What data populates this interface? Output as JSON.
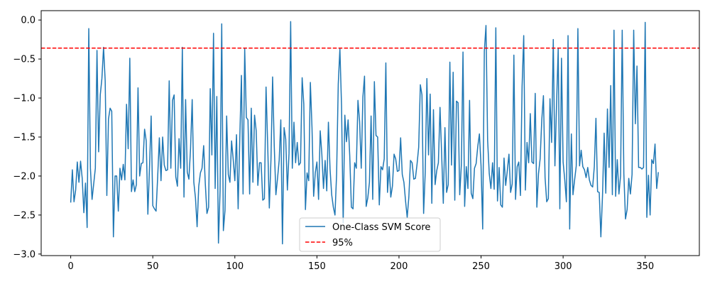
{
  "chart_data": {
    "type": "line",
    "title": "",
    "xlabel": "",
    "ylabel": "",
    "xlim": [
      -18,
      383
    ],
    "ylim": [
      -3.02,
      0.12
    ],
    "xticks": [
      0,
      50,
      100,
      150,
      200,
      250,
      300,
      350
    ],
    "yticks": [
      0.0,
      -0.5,
      -1.0,
      -1.5,
      -2.0,
      -2.5,
      -3.0
    ],
    "xtick_labels": [
      "0",
      "50",
      "100",
      "150",
      "200",
      "250",
      "300",
      "350"
    ],
    "ytick_labels": [
      "0.0",
      "−0.5",
      "−1.0",
      "−1.5",
      "−2.0",
      "−2.5",
      "−3.0"
    ],
    "grid": false,
    "legend_position": "bottom-center",
    "series": [
      {
        "name": "One-Class SVM Score",
        "color": "#1f77b4",
        "style": "solid",
        "x_start": 0,
        "values": [
          -2.34,
          -1.92,
          -2.33,
          -2.18,
          -1.82,
          -2.08,
          -1.81,
          -2.03,
          -2.47,
          -2.09,
          -2.66,
          -0.11,
          -1.9,
          -2.3,
          -2.1,
          -1.9,
          -0.39,
          -1.69,
          -0.96,
          -0.75,
          -0.35,
          -0.78,
          -2.25,
          -1.27,
          -1.13,
          -1.17,
          -2.78,
          -2.0,
          -2.0,
          -2.45,
          -1.9,
          -2.05,
          -1.85,
          -2.05,
          -1.08,
          -1.65,
          -0.49,
          -2.2,
          -2.05,
          -2.2,
          -2.11,
          -0.87,
          -2.0,
          -1.84,
          -1.83,
          -1.4,
          -1.55,
          -2.49,
          -1.89,
          -1.23,
          -2.38,
          -2.42,
          -2.45,
          -2.0,
          -1.51,
          -2.06,
          -1.5,
          -1.86,
          -1.93,
          -1.92,
          -0.78,
          -1.9,
          -1.03,
          -0.96,
          -2.01,
          -2.13,
          -1.52,
          -1.9,
          -0.35,
          -2.27,
          -1.02,
          -1.95,
          -2.04,
          -1.65,
          -1.02,
          -2.08,
          -2.28,
          -2.65,
          -2.13,
          -1.96,
          -1.9,
          -1.61,
          -2.1,
          -2.48,
          -2.4,
          -0.88,
          -1.73,
          -0.17,
          -2.16,
          -0.98,
          -2.86,
          -2.19,
          -0.05,
          -2.7,
          -2.44,
          -1.23,
          -1.98,
          -2.08,
          -1.55,
          -1.79,
          -2.06,
          -1.47,
          -2.42,
          -1.52,
          -0.71,
          -2.23,
          -0.37,
          -1.25,
          -1.28,
          -2.23,
          -1.13,
          -2.08,
          -1.22,
          -1.42,
          -2.12,
          -1.83,
          -1.83,
          -2.31,
          -2.29,
          -0.86,
          -1.6,
          -2.41,
          -1.79,
          -0.73,
          -1.61,
          -2.24,
          -2.03,
          -1.8,
          -1.28,
          -2.87,
          -1.38,
          -1.53,
          -2.18,
          -1.71,
          -0.02,
          -1.9,
          -1.31,
          -1.83,
          -1.57,
          -1.86,
          -1.83,
          -0.74,
          -1.08,
          -2.43,
          -1.96,
          -2.06,
          -0.8,
          -1.38,
          -2.26,
          -1.96,
          -1.82,
          -2.3,
          -1.42,
          -1.72,
          -2.16,
          -1.8,
          -2.19,
          -1.31,
          -1.91,
          -2.24,
          -2.4,
          -2.5,
          -1.97,
          -0.82,
          -0.37,
          -1.1,
          -2.6,
          -1.22,
          -1.56,
          -1.28,
          -1.74,
          -2.4,
          -2.42,
          -1.83,
          -1.9,
          -1.03,
          -1.3,
          -1.9,
          -0.99,
          -0.72,
          -2.39,
          -2.28,
          -2.08,
          -1.23,
          -2.3,
          -0.79,
          -1.48,
          -1.5,
          -2.37,
          -1.88,
          -1.92,
          -1.78,
          -0.55,
          -2.21,
          -1.88,
          -2.27,
          -2.13,
          -1.72,
          -1.78,
          -1.94,
          -1.93,
          -1.51,
          -1.98,
          -2.08,
          -2.32,
          -2.53,
          -2.27,
          -1.8,
          -1.83,
          -2.04,
          -2.03,
          -1.85,
          -1.63,
          -0.83,
          -0.96,
          -2.48,
          -1.95,
          -0.75,
          -1.73,
          -0.95,
          -2.35,
          -1.15,
          -2.11,
          -1.93,
          -1.83,
          -1.12,
          -1.73,
          -2.35,
          -1.38,
          -2.21,
          -2.11,
          -0.54,
          -1.86,
          -0.67,
          -2.31,
          -1.04,
          -1.06,
          -2.24,
          -1.86,
          -0.41,
          -2.39,
          -1.88,
          -2.16,
          -1.03,
          -2.22,
          -2.29,
          -1.9,
          -1.84,
          -1.62,
          -1.46,
          -1.87,
          -2.68,
          -0.4,
          -0.07,
          -1.54,
          -1.97,
          -2.16,
          -1.83,
          -2.17,
          -0.1,
          -2.32,
          -1.89,
          -2.37,
          -2.4,
          -1.77,
          -2.12,
          -1.93,
          -1.72,
          -2.21,
          -2.1,
          -0.45,
          -2.3,
          -1.88,
          -1.82,
          -2.25,
          -0.85,
          -0.2,
          -2.18,
          -1.57,
          -1.83,
          -1.2,
          -1.82,
          -1.84,
          -0.94,
          -2.4,
          -1.97,
          -1.78,
          -1.28,
          -0.97,
          -2.02,
          -2.33,
          -2.29,
          -1.01,
          -1.57,
          -0.25,
          -1.87,
          -1.08,
          -0.37,
          -2.42,
          -0.49,
          -1.82,
          -2.05,
          -2.33,
          -0.2,
          -2.68,
          -1.46,
          -2.24,
          -2.05,
          -1.87,
          -0.11,
          -1.87,
          -1.67,
          -1.88,
          -1.92,
          -2.02,
          -1.89,
          -2.05,
          -2.12,
          -2.14,
          -1.88,
          -1.26,
          -2.2,
          -2.21,
          -2.78,
          -2.25,
          -1.45,
          -2.22,
          -1.14,
          -1.89,
          -0.84,
          -2.24,
          -0.13,
          -2.26,
          -1.79,
          -2.23,
          -2.0,
          -0.13,
          -1.97,
          -2.55,
          -2.43,
          -2.03,
          -2.23,
          -1.98,
          -0.13,
          -1.33,
          -0.59,
          -1.89,
          -1.89,
          -1.91,
          -1.89,
          -0.03,
          -2.53,
          -1.99,
          -2.5,
          -1.79,
          -1.84,
          -1.59,
          -2.16,
          -1.95
        ]
      }
    ],
    "reference_lines": [
      {
        "name": "95%",
        "y": -0.36,
        "color": "#ff0000",
        "style": "dashed"
      }
    ]
  }
}
